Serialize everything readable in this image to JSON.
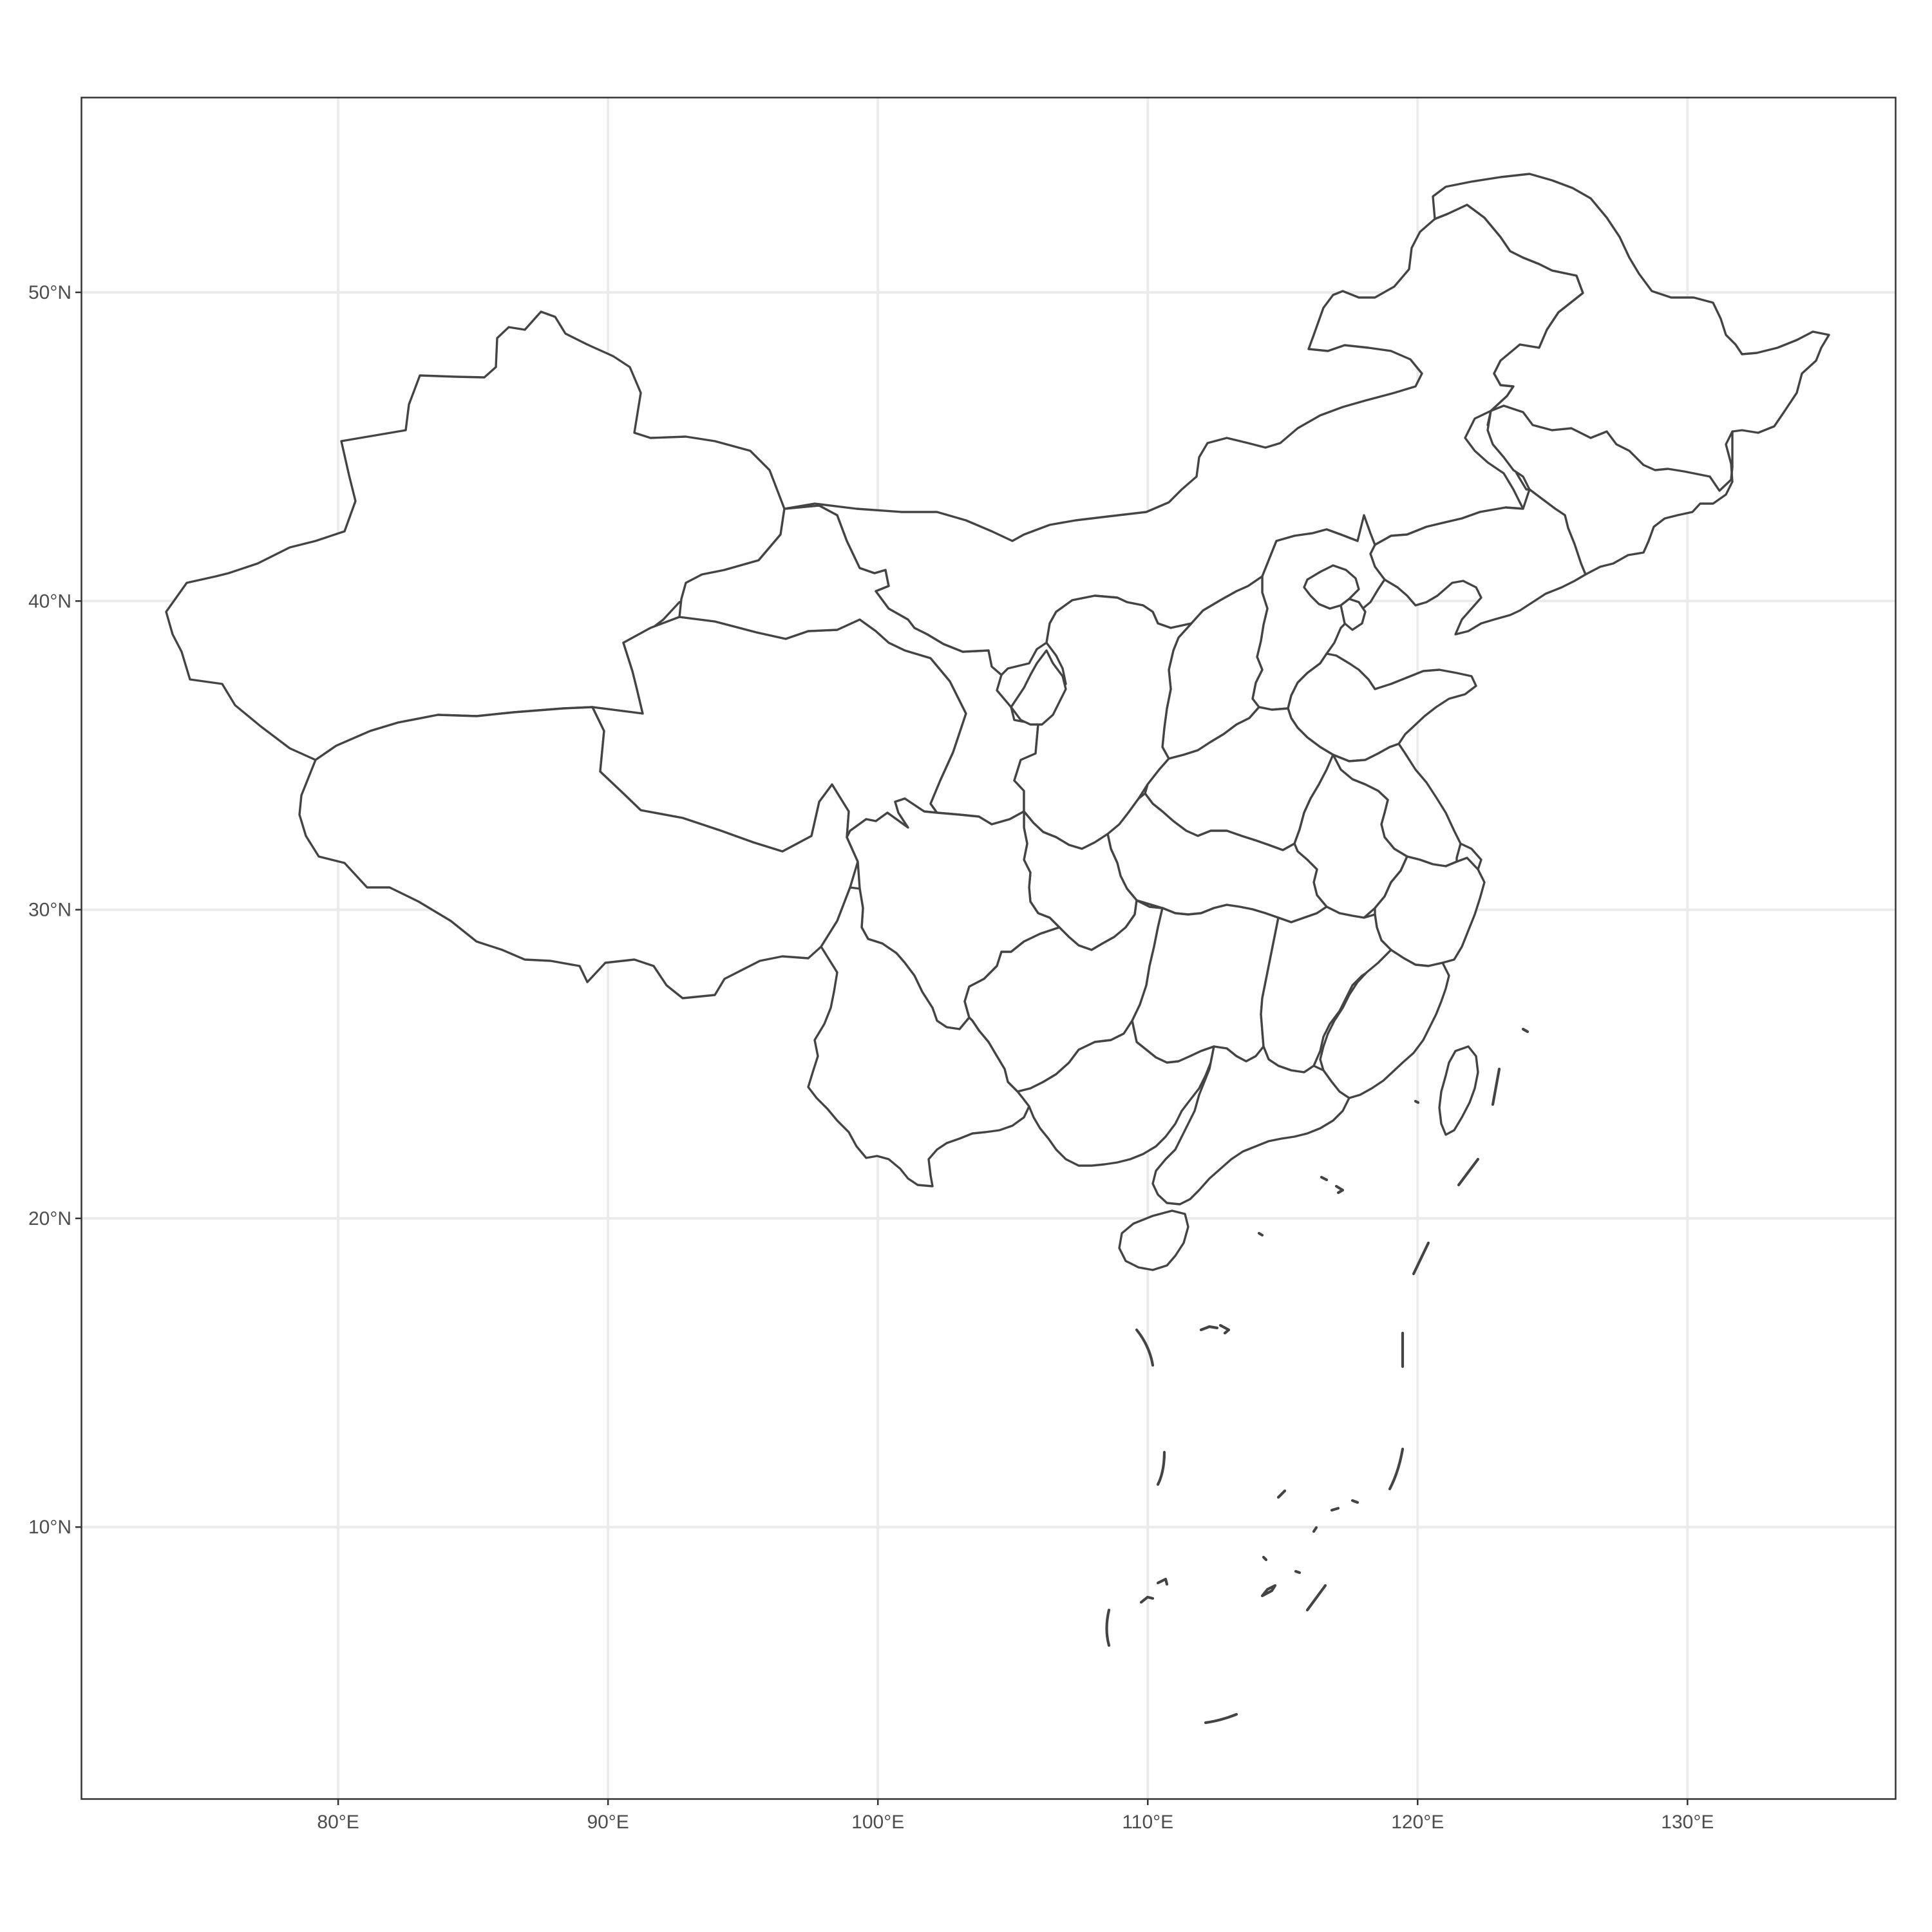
{
  "map": {
    "x_axis": {
      "ticks": [
        80,
        90,
        100,
        110,
        120,
        130
      ],
      "labels": [
        "80°E",
        "90°E",
        "100°E",
        "110°E",
        "120°E",
        "130°E"
      ]
    },
    "y_axis": {
      "ticks": [
        10,
        20,
        30,
        40,
        50
      ],
      "labels": [
        "10°N",
        "20°N",
        "30°N",
        "40°N",
        "50°N"
      ]
    },
    "extent": {
      "lon": [
        70.5,
        137.7
      ],
      "lat": [
        1.2,
        56.3
      ]
    },
    "grid": true,
    "line_color": "#444444",
    "grid_color": "#ebebeb",
    "land_fill": "#ffffff"
  }
}
